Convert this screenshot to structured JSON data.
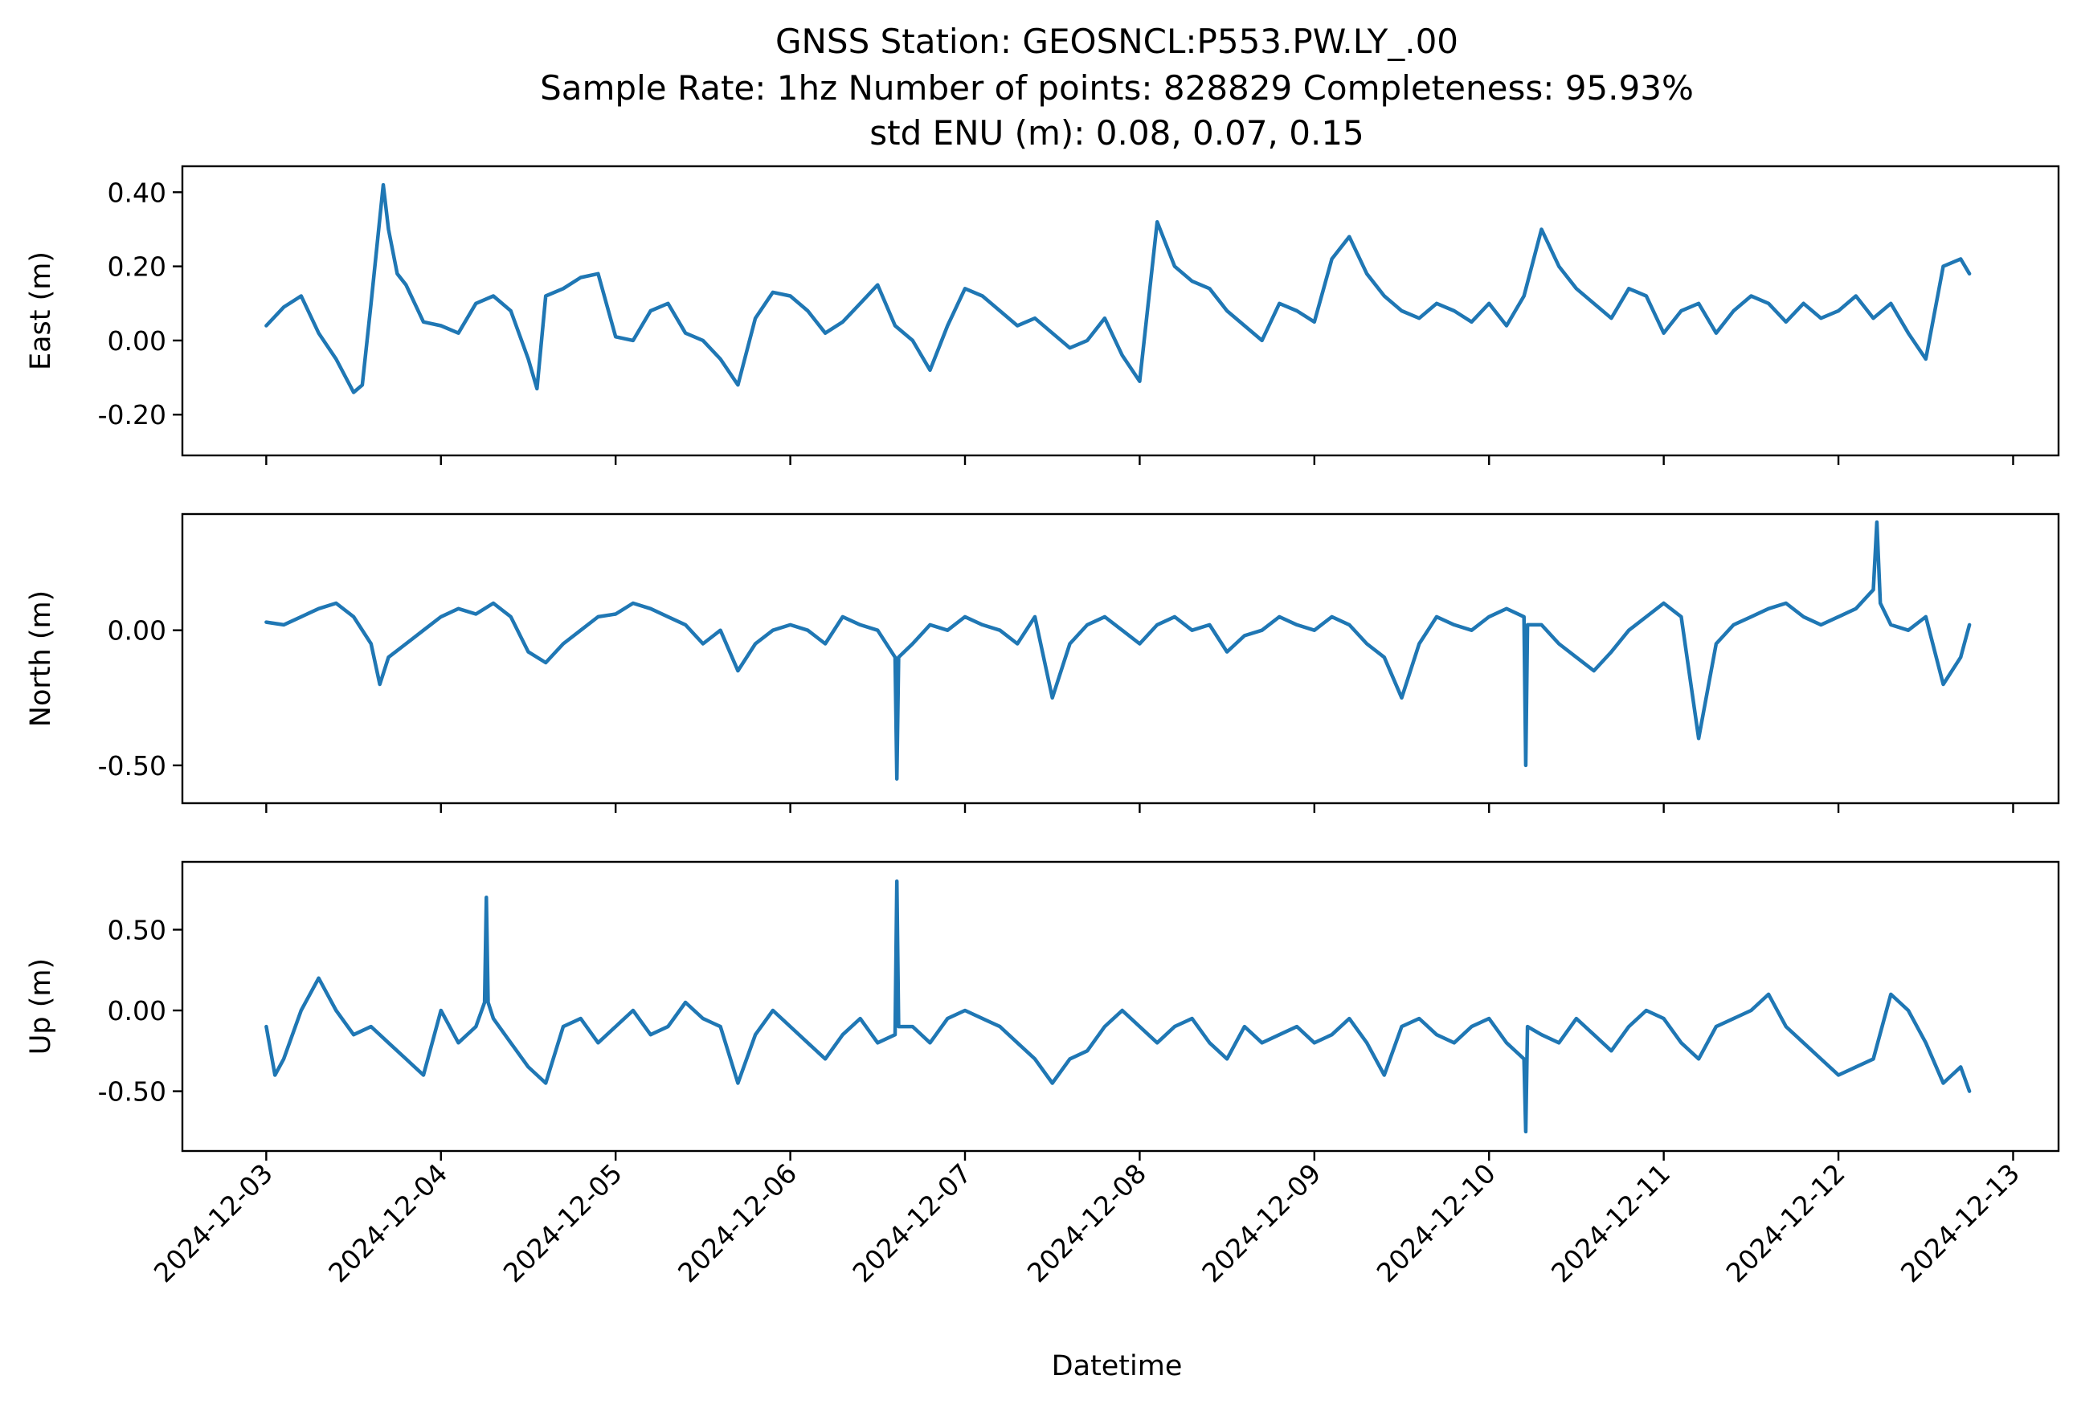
{
  "chart_data": {
    "type": "line",
    "title": [
      "GNSS Station: GEOSNCL:P553.PW.LY_.00",
      "Sample Rate: 1hz   Number of points: 828829    Completeness:  95.93%",
      "std ENU (m):  0.08, 0.07, 0.15"
    ],
    "xlabel": "Datetime",
    "x_ticks": [
      "2024-12-03",
      "2024-12-04",
      "2024-12-05",
      "2024-12-06",
      "2024-12-07",
      "2024-12-08",
      "2024-12-09",
      "2024-12-10",
      "2024-12-11",
      "2024-12-12",
      "2024-12-13"
    ],
    "x_range_days": [
      -0.48,
      10.26
    ],
    "line_color": "#1f77b4",
    "grid": false,
    "panels": [
      {
        "ylabel": "East (m)",
        "ylim": [
          -0.31,
          0.47
        ],
        "yticks": [
          0.4,
          0.2,
          0.0,
          -0.2
        ],
        "ytick_labels": [
          "0.40",
          "0.20",
          "0.00",
          "-0.20"
        ],
        "series": {
          "x": [
            0.0,
            0.1,
            0.2,
            0.3,
            0.4,
            0.5,
            0.55,
            0.6,
            0.67,
            0.7,
            0.75,
            0.8,
            0.9,
            1.0,
            1.1,
            1.2,
            1.3,
            1.4,
            1.5,
            1.55,
            1.6,
            1.7,
            1.8,
            1.9,
            2.0,
            2.1,
            2.2,
            2.3,
            2.4,
            2.5,
            2.6,
            2.7,
            2.8,
            2.9,
            3.0,
            3.1,
            3.2,
            3.3,
            3.4,
            3.5,
            3.6,
            3.7,
            3.8,
            3.9,
            4.0,
            4.1,
            4.2,
            4.3,
            4.4,
            4.5,
            4.6,
            4.7,
            4.8,
            4.9,
            5.0,
            5.1,
            5.2,
            5.3,
            5.4,
            5.5,
            5.6,
            5.7,
            5.8,
            5.9,
            6.0,
            6.1,
            6.2,
            6.3,
            6.4,
            6.5,
            6.6,
            6.7,
            6.8,
            6.9,
            7.0,
            7.1,
            7.2,
            7.3,
            7.4,
            7.5,
            7.6,
            7.7,
            7.8,
            7.9,
            8.0,
            8.1,
            8.2,
            8.3,
            8.4,
            8.5,
            8.6,
            8.7,
            8.8,
            8.9,
            9.0,
            9.1,
            9.2,
            9.3,
            9.4,
            9.5,
            9.6,
            9.7,
            9.75
          ],
          "y": [
            0.04,
            0.09,
            0.12,
            0.02,
            -0.05,
            -0.14,
            -0.12,
            0.1,
            0.42,
            0.3,
            0.18,
            0.15,
            0.05,
            0.04,
            0.02,
            0.1,
            0.12,
            0.08,
            -0.05,
            -0.13,
            0.12,
            0.14,
            0.17,
            0.18,
            0.01,
            0.0,
            0.08,
            0.1,
            0.02,
            0.0,
            -0.05,
            -0.12,
            0.06,
            0.13,
            0.12,
            0.08,
            0.02,
            0.05,
            0.1,
            0.15,
            0.04,
            0.0,
            -0.08,
            0.04,
            0.14,
            0.12,
            0.08,
            0.04,
            0.06,
            0.02,
            -0.02,
            0.0,
            0.06,
            -0.04,
            -0.11,
            0.32,
            0.2,
            0.16,
            0.14,
            0.08,
            0.04,
            0.0,
            0.1,
            0.08,
            0.05,
            0.22,
            0.28,
            0.18,
            0.12,
            0.08,
            0.06,
            0.1,
            0.08,
            0.05,
            0.1,
            0.04,
            0.12,
            0.3,
            0.2,
            0.14,
            0.1,
            0.06,
            0.14,
            0.12,
            0.02,
            0.08,
            0.1,
            0.02,
            0.08,
            0.12,
            0.1,
            0.05,
            0.1,
            0.06,
            0.08,
            0.12,
            0.06,
            0.1,
            0.02,
            -0.05,
            0.2,
            0.22,
            0.18
          ]
        }
      },
      {
        "ylabel": "North (m)",
        "ylim": [
          -0.64,
          0.43
        ],
        "yticks": [
          0.0,
          -0.5
        ],
        "ytick_labels": [
          "0.00",
          "-0.50"
        ],
        "series": {
          "x": [
            0.0,
            0.1,
            0.2,
            0.3,
            0.4,
            0.5,
            0.6,
            0.65,
            0.7,
            0.8,
            0.9,
            1.0,
            1.1,
            1.2,
            1.3,
            1.4,
            1.5,
            1.6,
            1.7,
            1.8,
            1.9,
            2.0,
            2.1,
            2.2,
            2.3,
            2.4,
            2.5,
            2.6,
            2.7,
            2.8,
            2.9,
            3.0,
            3.1,
            3.2,
            3.3,
            3.4,
            3.5,
            3.6,
            3.61,
            3.62,
            3.7,
            3.8,
            3.9,
            4.0,
            4.1,
            4.2,
            4.3,
            4.4,
            4.5,
            4.6,
            4.7,
            4.8,
            4.9,
            5.0,
            5.1,
            5.2,
            5.3,
            5.4,
            5.5,
            5.6,
            5.7,
            5.8,
            5.9,
            6.0,
            6.1,
            6.2,
            6.3,
            6.4,
            6.5,
            6.6,
            6.7,
            6.8,
            6.9,
            7.0,
            7.1,
            7.2,
            7.21,
            7.22,
            7.3,
            7.4,
            7.5,
            7.6,
            7.7,
            7.8,
            7.9,
            8.0,
            8.1,
            8.2,
            8.3,
            8.4,
            8.5,
            8.6,
            8.7,
            8.8,
            8.9,
            9.0,
            9.1,
            9.2,
            9.22,
            9.24,
            9.3,
            9.4,
            9.5,
            9.6,
            9.7,
            9.75
          ],
          "y": [
            0.03,
            0.02,
            0.05,
            0.08,
            0.1,
            0.05,
            -0.05,
            -0.2,
            -0.1,
            -0.05,
            0.0,
            0.05,
            0.08,
            0.06,
            0.1,
            0.05,
            -0.08,
            -0.12,
            -0.05,
            0.0,
            0.05,
            0.06,
            0.1,
            0.08,
            0.05,
            0.02,
            -0.05,
            0.0,
            -0.15,
            -0.05,
            0.0,
            0.02,
            0.0,
            -0.05,
            0.05,
            0.02,
            0.0,
            -0.1,
            -0.55,
            -0.1,
            -0.05,
            0.02,
            0.0,
            0.05,
            0.02,
            0.0,
            -0.05,
            0.05,
            -0.25,
            -0.05,
            0.02,
            0.05,
            0.0,
            -0.05,
            0.02,
            0.05,
            0.0,
            0.02,
            -0.08,
            -0.02,
            0.0,
            0.05,
            0.02,
            0.0,
            0.05,
            0.02,
            -0.05,
            -0.1,
            -0.25,
            -0.05,
            0.05,
            0.02,
            0.0,
            0.05,
            0.08,
            0.05,
            -0.5,
            0.02,
            0.02,
            -0.05,
            -0.1,
            -0.15,
            -0.08,
            0.0,
            0.05,
            0.1,
            0.05,
            -0.4,
            -0.05,
            0.02,
            0.05,
            0.08,
            0.1,
            0.05,
            0.02,
            0.05,
            0.08,
            0.15,
            0.4,
            0.1,
            0.02,
            0.0,
            0.05,
            -0.2,
            -0.1,
            0.02
          ]
        }
      },
      {
        "ylabel": "Up (m)",
        "ylim": [
          -0.87,
          0.92
        ],
        "yticks": [
          0.5,
          0.0,
          -0.5
        ],
        "ytick_labels": [
          "0.50",
          "0.00",
          "-0.50"
        ],
        "series": {
          "x": [
            0.0,
            0.05,
            0.1,
            0.2,
            0.3,
            0.4,
            0.5,
            0.6,
            0.7,
            0.8,
            0.9,
            1.0,
            1.1,
            1.2,
            1.25,
            1.26,
            1.27,
            1.3,
            1.4,
            1.5,
            1.6,
            1.7,
            1.8,
            1.9,
            2.0,
            2.1,
            2.2,
            2.3,
            2.4,
            2.5,
            2.6,
            2.7,
            2.8,
            2.9,
            3.0,
            3.1,
            3.2,
            3.3,
            3.4,
            3.5,
            3.6,
            3.61,
            3.62,
            3.7,
            3.8,
            3.9,
            4.0,
            4.1,
            4.2,
            4.3,
            4.4,
            4.5,
            4.6,
            4.7,
            4.8,
            4.9,
            5.0,
            5.1,
            5.2,
            5.3,
            5.4,
            5.5,
            5.6,
            5.7,
            5.8,
            5.9,
            6.0,
            6.1,
            6.2,
            6.3,
            6.4,
            6.5,
            6.6,
            6.7,
            6.8,
            6.9,
            7.0,
            7.1,
            7.2,
            7.21,
            7.22,
            7.3,
            7.4,
            7.5,
            7.6,
            7.7,
            7.8,
            7.9,
            8.0,
            8.1,
            8.2,
            8.3,
            8.4,
            8.5,
            8.6,
            8.7,
            8.8,
            8.9,
            9.0,
            9.1,
            9.2,
            9.3,
            9.4,
            9.5,
            9.6,
            9.7,
            9.75
          ],
          "y": [
            -0.1,
            -0.4,
            -0.3,
            0.0,
            0.2,
            0.0,
            -0.15,
            -0.1,
            -0.2,
            -0.3,
            -0.4,
            0.0,
            -0.2,
            -0.1,
            0.05,
            0.7,
            0.05,
            -0.05,
            -0.2,
            -0.35,
            -0.45,
            -0.1,
            -0.05,
            -0.2,
            -0.1,
            0.0,
            -0.15,
            -0.1,
            0.05,
            -0.05,
            -0.1,
            -0.45,
            -0.15,
            0.0,
            -0.1,
            -0.2,
            -0.3,
            -0.15,
            -0.05,
            -0.2,
            -0.15,
            0.8,
            -0.1,
            -0.1,
            -0.2,
            -0.05,
            0.0,
            -0.05,
            -0.1,
            -0.2,
            -0.3,
            -0.45,
            -0.3,
            -0.25,
            -0.1,
            0.0,
            -0.1,
            -0.2,
            -0.1,
            -0.05,
            -0.2,
            -0.3,
            -0.1,
            -0.2,
            -0.15,
            -0.1,
            -0.2,
            -0.15,
            -0.05,
            -0.2,
            -0.4,
            -0.1,
            -0.05,
            -0.15,
            -0.2,
            -0.1,
            -0.05,
            -0.2,
            -0.3,
            -0.75,
            -0.1,
            -0.15,
            -0.2,
            -0.05,
            -0.15,
            -0.25,
            -0.1,
            0.0,
            -0.05,
            -0.2,
            -0.3,
            -0.1,
            -0.05,
            0.0,
            0.1,
            -0.1,
            -0.2,
            -0.3,
            -0.4,
            -0.35,
            -0.3,
            0.1,
            0.0,
            -0.2,
            -0.45,
            -0.35,
            -0.5
          ]
        }
      }
    ]
  }
}
